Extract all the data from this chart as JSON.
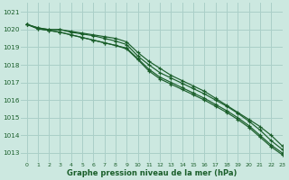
{
  "title": "Graphe pression niveau de la mer (hPa)",
  "bg_color": "#cce8e0",
  "grid_color": "#aacfc8",
  "line_color": "#1a5e2a",
  "xlim": [
    -0.5,
    23
  ],
  "ylim": [
    1012.5,
    1021.5
  ],
  "yticks": [
    1013,
    1014,
    1015,
    1016,
    1017,
    1018,
    1019,
    1020,
    1021
  ],
  "xticks": [
    0,
    1,
    2,
    3,
    4,
    5,
    6,
    7,
    8,
    9,
    10,
    11,
    12,
    13,
    14,
    15,
    16,
    17,
    18,
    19,
    20,
    21,
    22,
    23
  ],
  "series": [
    [
      1020.3,
      1020.1,
      1020.0,
      1020.0,
      1019.9,
      1019.8,
      1019.7,
      1019.6,
      1019.5,
      1019.3,
      1018.7,
      1018.2,
      1017.8,
      1017.4,
      1017.1,
      1016.8,
      1016.5,
      1016.1,
      1015.7,
      1015.3,
      1014.9,
      1014.5,
      1014.0,
      1013.4
    ],
    [
      1020.3,
      1020.1,
      1020.0,
      1020.0,
      1019.85,
      1019.75,
      1019.65,
      1019.5,
      1019.35,
      1019.15,
      1018.5,
      1018.0,
      1017.55,
      1017.25,
      1016.95,
      1016.65,
      1016.35,
      1016.0,
      1015.65,
      1015.25,
      1014.8,
      1014.3,
      1013.7,
      1013.2
    ],
    [
      1020.3,
      1020.05,
      1019.95,
      1019.85,
      1019.7,
      1019.55,
      1019.4,
      1019.25,
      1019.1,
      1018.95,
      1018.35,
      1017.75,
      1017.3,
      1017.0,
      1016.7,
      1016.4,
      1016.1,
      1015.75,
      1015.4,
      1015.0,
      1014.55,
      1014.0,
      1013.45,
      1013.0
    ],
    [
      1020.3,
      1020.05,
      1019.95,
      1019.85,
      1019.7,
      1019.55,
      1019.4,
      1019.25,
      1019.1,
      1018.9,
      1018.3,
      1017.65,
      1017.2,
      1016.9,
      1016.6,
      1016.3,
      1016.0,
      1015.65,
      1015.3,
      1014.9,
      1014.45,
      1013.9,
      1013.35,
      1012.9
    ]
  ]
}
